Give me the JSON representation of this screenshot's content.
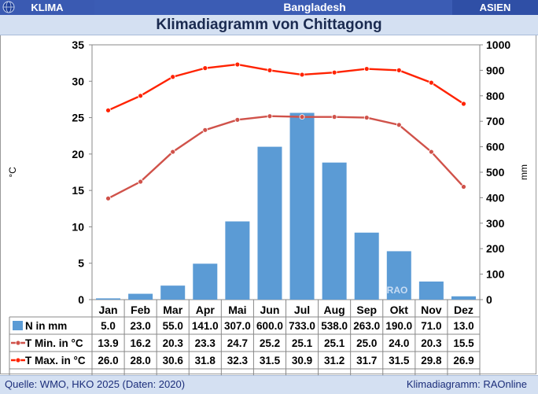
{
  "header": {
    "left_label": "KLIMA",
    "country": "Bangladesh",
    "region": "ASIEN",
    "globe_icon": "globe-icon"
  },
  "title": "Klimadiagramm von Chittagong",
  "footer": {
    "source": "Quelle: WMO, HKO 2025 (Daten: 2020)",
    "credit": "Klimadiagramm: RAOnline"
  },
  "watermark": "RAO",
  "colors": {
    "bars": "#5b9bd5",
    "tmin": "#d0524a",
    "tmax": "#ff2200",
    "header": "#3b5cb4",
    "titlebar": "#d4e0f2"
  },
  "chart_data": {
    "type": "bar+line",
    "categories": [
      "Jan",
      "Feb",
      "Mar",
      "Apr",
      "Mai",
      "Jun",
      "Jul",
      "Aug",
      "Sep",
      "Okt",
      "Nov",
      "Dez"
    ],
    "left_axis": {
      "label": "°C",
      "range": [
        0,
        35
      ],
      "ticks": [
        0,
        5,
        10,
        15,
        20,
        25,
        30,
        35
      ]
    },
    "right_axis": {
      "label": "mm",
      "range": [
        0,
        1000
      ],
      "ticks": [
        0,
        100,
        200,
        300,
        400,
        500,
        600,
        700,
        800,
        900,
        1000
      ]
    },
    "grid": "none",
    "series": [
      {
        "name": "N in mm",
        "kind": "bar",
        "axis": "right",
        "values": [
          5.0,
          23.0,
          55.0,
          141.0,
          307.0,
          600.0,
          733.0,
          538.0,
          263.0,
          190.0,
          71.0,
          13.0
        ],
        "labels": [
          "5.0",
          "23.0",
          "55.0",
          "141.0",
          "307.0",
          "600.0",
          "733.0",
          "538.0",
          "263.0",
          "190.0",
          "71.0",
          "13.0"
        ]
      },
      {
        "name": "T Min. in °C",
        "kind": "line",
        "axis": "left",
        "values": [
          13.9,
          16.2,
          20.3,
          23.3,
          24.7,
          25.2,
          25.1,
          25.1,
          25.0,
          24.0,
          20.3,
          15.5
        ],
        "labels": [
          "13.9",
          "16.2",
          "20.3",
          "23.3",
          "24.7",
          "25.2",
          "25.1",
          "25.1",
          "25.0",
          "24.0",
          "20.3",
          "15.5"
        ]
      },
      {
        "name": "T Max. in °C",
        "kind": "line",
        "axis": "left",
        "values": [
          26.0,
          28.0,
          30.6,
          31.8,
          32.3,
          31.5,
          30.9,
          31.2,
          31.7,
          31.5,
          29.8,
          26.9
        ],
        "labels": [
          "26.0",
          "28.0",
          "30.6",
          "31.8",
          "32.3",
          "31.5",
          "30.9",
          "31.2",
          "31.7",
          "31.5",
          "29.8",
          "26.9"
        ]
      }
    ]
  }
}
